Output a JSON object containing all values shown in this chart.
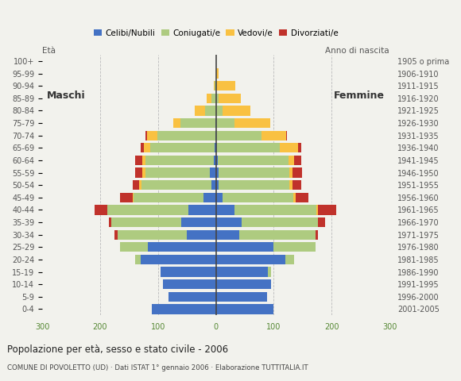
{
  "age_groups": [
    "0-4",
    "5-9",
    "10-14",
    "15-19",
    "20-24",
    "25-29",
    "30-34",
    "35-39",
    "40-44",
    "45-49",
    "50-54",
    "55-59",
    "60-64",
    "65-69",
    "70-74",
    "75-79",
    "80-84",
    "85-89",
    "90-94",
    "95-99",
    "100+"
  ],
  "birth_years": [
    "2001-2005",
    "1996-2000",
    "1991-1995",
    "1986-1990",
    "1981-1985",
    "1976-1980",
    "1971-1975",
    "1966-1970",
    "1961-1965",
    "1956-1960",
    "1951-1955",
    "1946-1950",
    "1941-1945",
    "1936-1940",
    "1931-1935",
    "1926-1930",
    "1921-1925",
    "1916-1920",
    "1911-1915",
    "1906-1910",
    "1905 o prima"
  ],
  "males_celibi": [
    110,
    82,
    92,
    95,
    130,
    118,
    50,
    60,
    48,
    22,
    8,
    10,
    3,
    2,
    1,
    1,
    0,
    0,
    0,
    0,
    0
  ],
  "males_coniugati": [
    0,
    0,
    0,
    0,
    10,
    48,
    120,
    120,
    140,
    120,
    120,
    112,
    118,
    112,
    100,
    60,
    18,
    8,
    2,
    0,
    0
  ],
  "males_vedovi": [
    0,
    0,
    0,
    0,
    0,
    0,
    0,
    0,
    0,
    2,
    4,
    5,
    6,
    10,
    18,
    12,
    18,
    8,
    2,
    0,
    0
  ],
  "males_divorziati": [
    0,
    0,
    0,
    0,
    0,
    0,
    5,
    5,
    22,
    22,
    12,
    12,
    12,
    6,
    2,
    0,
    0,
    0,
    0,
    0,
    0
  ],
  "females_nubili": [
    100,
    88,
    95,
    90,
    120,
    100,
    40,
    45,
    32,
    12,
    5,
    5,
    3,
    2,
    1,
    0,
    0,
    0,
    0,
    0,
    0
  ],
  "females_coniugate": [
    0,
    0,
    0,
    5,
    15,
    72,
    132,
    132,
    142,
    122,
    122,
    122,
    122,
    108,
    78,
    32,
    12,
    5,
    1,
    0,
    0
  ],
  "females_vedove": [
    0,
    0,
    0,
    0,
    0,
    0,
    0,
    0,
    2,
    4,
    5,
    6,
    10,
    32,
    42,
    62,
    48,
    38,
    32,
    5,
    0
  ],
  "females_divorziate": [
    0,
    0,
    0,
    0,
    0,
    0,
    5,
    12,
    32,
    22,
    16,
    16,
    12,
    6,
    2,
    0,
    0,
    0,
    0,
    0,
    0
  ],
  "color_celibi": "#4472C4",
  "color_coniugati": "#AECB80",
  "color_vedovi": "#F9C142",
  "color_divorziati": "#C0322B",
  "xlim": 300,
  "title": "Popolazione per età, sesso e stato civile - 2006",
  "subtitle": "COMUNE DI POVOLETTO (UD) · Dati ISTAT 1° gennaio 2006 · Elaborazione TUTTITALIA.IT",
  "bg_color": "#f2f2ed"
}
